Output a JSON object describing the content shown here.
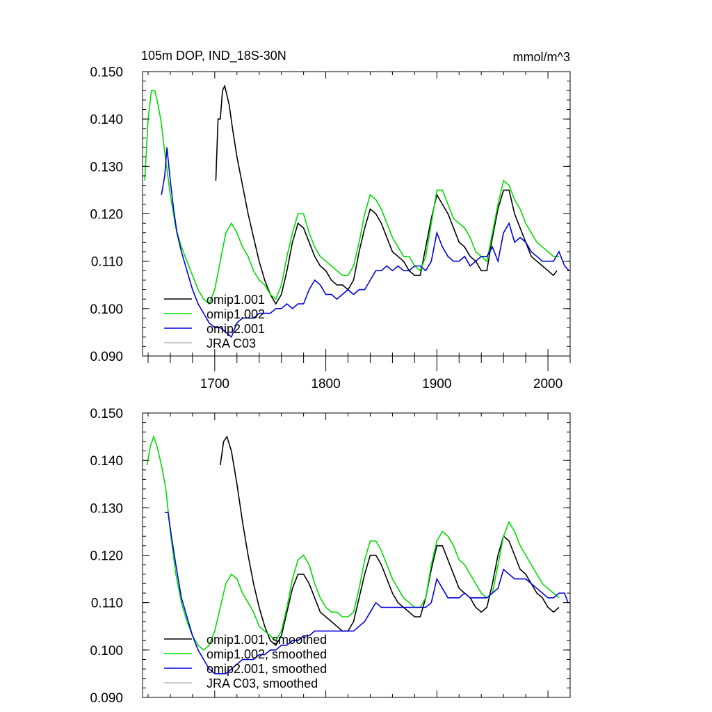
{
  "chart_data": [
    {
      "type": "line",
      "title": "105m DOP, IND_18S-30N",
      "units": "mmol/m^3",
      "xlim": [
        1635,
        2020
      ],
      "ylim": [
        0.09,
        0.15
      ],
      "yticks": [
        "0.090",
        "0.100",
        "0.110",
        "0.120",
        "0.130",
        "0.140",
        "0.150"
      ],
      "xticks": [
        "1700",
        "1800",
        "1900",
        "2000"
      ],
      "grid": false,
      "legend_position": "bottom-left",
      "series": [
        {
          "name": "omip1.001",
          "color": "#000000",
          "x": [
            1701,
            1703,
            1705,
            1707,
            1709,
            1711,
            1713,
            1716,
            1720,
            1725,
            1730,
            1735,
            1740,
            1745,
            1750,
            1755,
            1760,
            1765,
            1770,
            1775,
            1780,
            1785,
            1790,
            1795,
            1800,
            1805,
            1810,
            1815,
            1820,
            1825,
            1830,
            1835,
            1840,
            1845,
            1850,
            1855,
            1860,
            1865,
            1870,
            1875,
            1880,
            1885,
            1890,
            1895,
            1900,
            1905,
            1910,
            1915,
            1920,
            1925,
            1930,
            1935,
            1940,
            1945,
            1950,
            1955,
            1960,
            1965,
            1970,
            1975,
            1980,
            1985,
            1990,
            1995,
            2000,
            2005,
            2008
          ],
          "y": [
            0.127,
            0.14,
            0.14,
            0.146,
            0.147,
            0.145,
            0.143,
            0.138,
            0.132,
            0.126,
            0.12,
            0.115,
            0.11,
            0.106,
            0.103,
            0.101,
            0.103,
            0.108,
            0.114,
            0.118,
            0.117,
            0.114,
            0.111,
            0.109,
            0.108,
            0.106,
            0.105,
            0.105,
            0.104,
            0.106,
            0.112,
            0.117,
            0.121,
            0.12,
            0.118,
            0.115,
            0.112,
            0.111,
            0.11,
            0.108,
            0.107,
            0.107,
            0.113,
            0.119,
            0.124,
            0.122,
            0.12,
            0.117,
            0.114,
            0.113,
            0.111,
            0.11,
            0.108,
            0.108,
            0.115,
            0.121,
            0.125,
            0.125,
            0.12,
            0.117,
            0.114,
            0.111,
            0.11,
            0.109,
            0.108,
            0.107,
            0.108
          ]
        },
        {
          "name": "omip1.002",
          "color": "#00dd00",
          "x": [
            1637,
            1640,
            1643,
            1646,
            1649,
            1652,
            1655,
            1660,
            1665,
            1670,
            1675,
            1680,
            1685,
            1690,
            1695,
            1700,
            1705,
            1710,
            1715,
            1720,
            1725,
            1730,
            1735,
            1740,
            1745,
            1750,
            1755,
            1760,
            1765,
            1770,
            1775,
            1780,
            1785,
            1790,
            1795,
            1800,
            1805,
            1810,
            1815,
            1820,
            1825,
            1830,
            1835,
            1840,
            1845,
            1850,
            1855,
            1860,
            1865,
            1870,
            1875,
            1880,
            1885,
            1890,
            1895,
            1900,
            1905,
            1910,
            1915,
            1920,
            1925,
            1930,
            1935,
            1940,
            1945,
            1950,
            1955,
            1960,
            1965,
            1970,
            1975,
            1980,
            1985,
            1990,
            1995,
            2000,
            2005,
            2010
          ],
          "y": [
            0.127,
            0.14,
            0.146,
            0.146,
            0.143,
            0.139,
            0.133,
            0.124,
            0.117,
            0.113,
            0.11,
            0.107,
            0.104,
            0.102,
            0.101,
            0.104,
            0.11,
            0.116,
            0.118,
            0.116,
            0.113,
            0.111,
            0.108,
            0.106,
            0.105,
            0.103,
            0.102,
            0.105,
            0.111,
            0.116,
            0.12,
            0.12,
            0.116,
            0.113,
            0.111,
            0.11,
            0.109,
            0.108,
            0.107,
            0.107,
            0.109,
            0.114,
            0.12,
            0.124,
            0.123,
            0.121,
            0.118,
            0.115,
            0.113,
            0.111,
            0.111,
            0.109,
            0.108,
            0.111,
            0.118,
            0.125,
            0.125,
            0.122,
            0.119,
            0.118,
            0.117,
            0.115,
            0.112,
            0.111,
            0.11,
            0.116,
            0.122,
            0.127,
            0.126,
            0.123,
            0.121,
            0.118,
            0.116,
            0.114,
            0.113,
            0.112,
            0.111,
            0.111
          ]
        },
        {
          "name": "omip2.001",
          "color": "#0000dd",
          "x": [
            1652,
            1655,
            1657,
            1660,
            1663,
            1666,
            1670,
            1675,
            1680,
            1685,
            1690,
            1695,
            1700,
            1705,
            1710,
            1715,
            1720,
            1725,
            1730,
            1735,
            1740,
            1745,
            1750,
            1755,
            1760,
            1765,
            1770,
            1775,
            1780,
            1785,
            1790,
            1795,
            1800,
            1805,
            1810,
            1815,
            1820,
            1825,
            1830,
            1835,
            1840,
            1845,
            1850,
            1855,
            1860,
            1865,
            1870,
            1875,
            1880,
            1885,
            1890,
            1895,
            1900,
            1905,
            1910,
            1915,
            1920,
            1925,
            1930,
            1935,
            1940,
            1945,
            1950,
            1955,
            1960,
            1965,
            1970,
            1975,
            1980,
            1985,
            1990,
            1995,
            2000,
            2005,
            2010,
            2015,
            2019
          ],
          "y": [
            0.124,
            0.128,
            0.134,
            0.127,
            0.121,
            0.116,
            0.112,
            0.108,
            0.104,
            0.101,
            0.099,
            0.097,
            0.096,
            0.096,
            0.095,
            0.094,
            0.097,
            0.098,
            0.098,
            0.098,
            0.099,
            0.099,
            0.099,
            0.1,
            0.1,
            0.101,
            0.1,
            0.101,
            0.101,
            0.104,
            0.106,
            0.105,
            0.103,
            0.103,
            0.102,
            0.103,
            0.104,
            0.103,
            0.104,
            0.104,
            0.106,
            0.108,
            0.108,
            0.109,
            0.108,
            0.109,
            0.108,
            0.108,
            0.109,
            0.109,
            0.108,
            0.11,
            0.116,
            0.113,
            0.111,
            0.11,
            0.11,
            0.111,
            0.109,
            0.11,
            0.111,
            0.111,
            0.113,
            0.11,
            0.116,
            0.118,
            0.114,
            0.115,
            0.114,
            0.112,
            0.111,
            0.11,
            0.11,
            0.11,
            0.112,
            0.109,
            0.108
          ]
        },
        {
          "name": "JRA C03",
          "color": "#bbbbbb",
          "x": [],
          "y": []
        }
      ]
    },
    {
      "type": "line",
      "title": "",
      "xlim": [
        1635,
        2020
      ],
      "ylim": [
        0.09,
        0.15
      ],
      "yticks": [
        "0.090",
        "0.100",
        "0.110",
        "0.120",
        "0.130",
        "0.140",
        "0.150"
      ],
      "grid": false,
      "legend_position": "bottom-left",
      "series": [
        {
          "name": "omip1.001, smoothed",
          "color": "#000000",
          "x": [
            1705,
            1708,
            1711,
            1715,
            1720,
            1725,
            1730,
            1735,
            1740,
            1745,
            1750,
            1755,
            1760,
            1765,
            1770,
            1775,
            1780,
            1785,
            1790,
            1795,
            1800,
            1805,
            1810,
            1815,
            1820,
            1825,
            1830,
            1835,
            1840,
            1845,
            1850,
            1855,
            1860,
            1865,
            1870,
            1875,
            1880,
            1885,
            1890,
            1895,
            1900,
            1905,
            1910,
            1915,
            1920,
            1925,
            1930,
            1935,
            1940,
            1945,
            1950,
            1955,
            1960,
            1965,
            1970,
            1975,
            1980,
            1985,
            1990,
            1995,
            2000,
            2005,
            2010
          ],
          "y": [
            0.139,
            0.144,
            0.145,
            0.142,
            0.135,
            0.127,
            0.12,
            0.114,
            0.109,
            0.105,
            0.102,
            0.101,
            0.103,
            0.108,
            0.113,
            0.116,
            0.116,
            0.114,
            0.111,
            0.108,
            0.107,
            0.106,
            0.105,
            0.104,
            0.104,
            0.106,
            0.111,
            0.116,
            0.12,
            0.12,
            0.118,
            0.115,
            0.112,
            0.11,
            0.109,
            0.108,
            0.107,
            0.107,
            0.111,
            0.117,
            0.122,
            0.122,
            0.119,
            0.116,
            0.113,
            0.112,
            0.111,
            0.109,
            0.108,
            0.109,
            0.114,
            0.12,
            0.124,
            0.123,
            0.12,
            0.117,
            0.116,
            0.114,
            0.112,
            0.111,
            0.109,
            0.108,
            0.109
          ]
        },
        {
          "name": "omip1.002, smoothed",
          "color": "#00dd00",
          "x": [
            1639,
            1642,
            1645,
            1648,
            1652,
            1656,
            1660,
            1665,
            1670,
            1675,
            1680,
            1685,
            1690,
            1695,
            1700,
            1705,
            1710,
            1715,
            1720,
            1725,
            1730,
            1735,
            1740,
            1745,
            1750,
            1755,
            1760,
            1765,
            1770,
            1775,
            1780,
            1785,
            1790,
            1795,
            1800,
            1805,
            1810,
            1815,
            1820,
            1825,
            1830,
            1835,
            1840,
            1845,
            1850,
            1855,
            1860,
            1865,
            1870,
            1875,
            1880,
            1885,
            1890,
            1895,
            1900,
            1905,
            1910,
            1915,
            1920,
            1925,
            1930,
            1935,
            1940,
            1945,
            1950,
            1955,
            1960,
            1965,
            1970,
            1975,
            1980,
            1985,
            1990,
            1995,
            2000,
            2005,
            2010
          ],
          "y": [
            0.139,
            0.143,
            0.145,
            0.143,
            0.139,
            0.134,
            0.125,
            0.116,
            0.11,
            0.106,
            0.103,
            0.101,
            0.1,
            0.101,
            0.104,
            0.109,
            0.114,
            0.116,
            0.115,
            0.112,
            0.11,
            0.108,
            0.105,
            0.104,
            0.103,
            0.102,
            0.104,
            0.109,
            0.115,
            0.119,
            0.12,
            0.118,
            0.114,
            0.111,
            0.109,
            0.108,
            0.108,
            0.107,
            0.107,
            0.108,
            0.113,
            0.119,
            0.123,
            0.123,
            0.121,
            0.118,
            0.115,
            0.113,
            0.111,
            0.11,
            0.109,
            0.109,
            0.111,
            0.118,
            0.123,
            0.125,
            0.124,
            0.122,
            0.119,
            0.118,
            0.116,
            0.114,
            0.112,
            0.111,
            0.112,
            0.118,
            0.124,
            0.127,
            0.125,
            0.122,
            0.12,
            0.118,
            0.116,
            0.114,
            0.113,
            0.112,
            0.111
          ]
        },
        {
          "name": "omip2.001, smoothed",
          "color": "#0000dd",
          "x": [
            1655,
            1658,
            1661,
            1665,
            1670,
            1675,
            1680,
            1685,
            1690,
            1695,
            1700,
            1705,
            1710,
            1715,
            1720,
            1725,
            1730,
            1735,
            1740,
            1745,
            1750,
            1755,
            1760,
            1765,
            1770,
            1775,
            1780,
            1785,
            1790,
            1795,
            1800,
            1805,
            1810,
            1815,
            1820,
            1825,
            1830,
            1835,
            1840,
            1845,
            1850,
            1855,
            1860,
            1865,
            1870,
            1875,
            1880,
            1885,
            1890,
            1895,
            1900,
            1905,
            1910,
            1915,
            1920,
            1925,
            1930,
            1935,
            1940,
            1945,
            1950,
            1955,
            1960,
            1965,
            1970,
            1975,
            1980,
            1985,
            1990,
            1995,
            2000,
            2005,
            2010,
            2015,
            2018
          ],
          "y": [
            0.129,
            0.129,
            0.124,
            0.118,
            0.111,
            0.107,
            0.103,
            0.1,
            0.098,
            0.096,
            0.095,
            0.095,
            0.095,
            0.096,
            0.097,
            0.098,
            0.098,
            0.098,
            0.099,
            0.099,
            0.1,
            0.1,
            0.101,
            0.101,
            0.102,
            0.102,
            0.103,
            0.103,
            0.104,
            0.104,
            0.104,
            0.104,
            0.104,
            0.104,
            0.104,
            0.104,
            0.105,
            0.106,
            0.108,
            0.11,
            0.109,
            0.109,
            0.109,
            0.109,
            0.109,
            0.109,
            0.109,
            0.109,
            0.109,
            0.11,
            0.115,
            0.113,
            0.111,
            0.111,
            0.111,
            0.112,
            0.111,
            0.111,
            0.111,
            0.111,
            0.112,
            0.113,
            0.117,
            0.116,
            0.115,
            0.115,
            0.115,
            0.114,
            0.113,
            0.112,
            0.111,
            0.111,
            0.112,
            0.112,
            0.11
          ]
        },
        {
          "name": "JRA C03, smoothed",
          "color": "#bbbbbb",
          "x": [],
          "y": []
        }
      ]
    }
  ]
}
